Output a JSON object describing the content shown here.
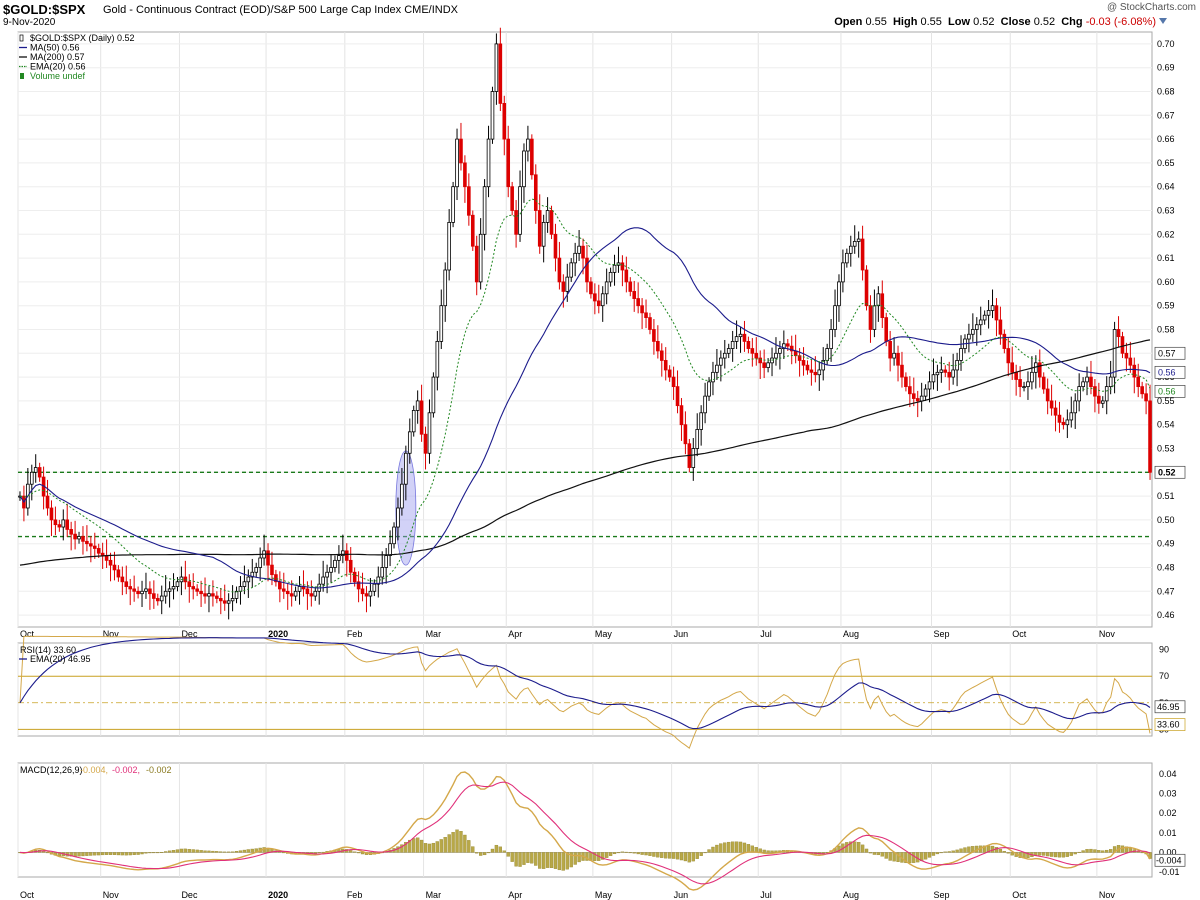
{
  "header": {
    "symbol": "$GOLD:$SPX",
    "description": "Gold - Continuous Contract (EOD)/S&P 500 Large Cap Index  CME/INDX",
    "date": "9-Nov-2020",
    "copyright": "@ StockCharts.com",
    "open_label": "Open",
    "open": "0.55",
    "high_label": "High",
    "high": "0.55",
    "low_label": "Low",
    "low": "0.52",
    "close_label": "Close",
    "close": "0.52",
    "chg_label": "Chg",
    "chg": "-0.03 (-6.08%)"
  },
  "colors": {
    "up": "#000000",
    "down": "#dd0000",
    "ma50": "#1c1c8c",
    "ma200": "#111111",
    "ema20": "#228822",
    "support": "#1a7a1a",
    "rsi": "#d4a84a",
    "band": "#c8a020",
    "macd_signal": "#e0307a",
    "highlight": "#9c9cee"
  },
  "chart_data": [
    {
      "type": "candlestick",
      "title": "$GOLD:$SPX (Daily) 0.52",
      "legend": [
        {
          "label": "$GOLD:$SPX (Daily) 0.52",
          "style": "candles"
        },
        {
          "label": "MA(50) 0.56",
          "style": "line"
        },
        {
          "label": "MA(200) 0.57",
          "style": "line"
        },
        {
          "label": "EMA(20) 0.56",
          "style": "dotted"
        },
        {
          "label": "Volume undef",
          "style": "bars"
        }
      ],
      "ylim": [
        0.455,
        0.705
      ],
      "yticks": [
        "0.70",
        "0.69",
        "0.68",
        "0.67",
        "0.66",
        "0.65",
        "0.64",
        "0.63",
        "0.62",
        "0.61",
        "0.60",
        "0.59",
        "0.58",
        "0.57",
        "0.56",
        "0.55",
        "0.54",
        "0.53",
        "0.52",
        "0.51",
        "0.50",
        "0.49",
        "0.48",
        "0.47",
        "0.46"
      ],
      "ytick_values": [
        0.7,
        0.69,
        0.68,
        0.67,
        0.66,
        0.65,
        0.64,
        0.63,
        0.62,
        0.61,
        0.6,
        0.59,
        0.58,
        0.57,
        0.56,
        0.55,
        0.54,
        0.53,
        0.52,
        0.51,
        0.5,
        0.49,
        0.48,
        0.47,
        0.46
      ],
      "months": [
        "Oct",
        "Nov",
        "Dec",
        "2020",
        "Feb",
        "Mar",
        "Apr",
        "May",
        "Jun",
        "Jul",
        "Aug",
        "Sep",
        "Oct",
        "Nov"
      ],
      "month_day_index": [
        0,
        21,
        41,
        63,
        83,
        103,
        124,
        146,
        166,
        188,
        209,
        232,
        252,
        274
      ],
      "close": [
        0.51,
        0.505,
        0.515,
        0.52,
        0.522,
        0.518,
        0.51,
        0.505,
        0.5,
        0.498,
        0.497,
        0.5,
        0.496,
        0.494,
        0.492,
        0.493,
        0.491,
        0.49,
        0.489,
        0.488,
        0.486,
        0.485,
        0.483,
        0.481,
        0.479,
        0.476,
        0.474,
        0.472,
        0.471,
        0.47,
        0.469,
        0.47,
        0.471,
        0.469,
        0.467,
        0.466,
        0.468,
        0.47,
        0.471,
        0.472,
        0.474,
        0.476,
        0.474,
        0.472,
        0.471,
        0.47,
        0.469,
        0.468,
        0.469,
        0.468,
        0.467,
        0.466,
        0.465,
        0.466,
        0.467,
        0.47,
        0.472,
        0.474,
        0.476,
        0.478,
        0.48,
        0.484,
        0.487,
        0.481,
        0.477,
        0.474,
        0.471,
        0.47,
        0.469,
        0.468,
        0.47,
        0.472,
        0.471,
        0.469,
        0.468,
        0.47,
        0.473,
        0.476,
        0.478,
        0.48,
        0.483,
        0.485,
        0.487,
        0.483,
        0.478,
        0.474,
        0.471,
        0.469,
        0.468,
        0.47,
        0.473,
        0.476,
        0.48,
        0.485,
        0.49,
        0.497,
        0.505,
        0.515,
        0.528,
        0.537,
        0.546,
        0.55,
        0.536,
        0.528,
        0.545,
        0.56,
        0.575,
        0.59,
        0.605,
        0.625,
        0.64,
        0.66,
        0.65,
        0.64,
        0.628,
        0.615,
        0.6,
        0.62,
        0.64,
        0.66,
        0.68,
        0.7,
        0.675,
        0.66,
        0.64,
        0.63,
        0.62,
        0.64,
        0.655,
        0.66,
        0.645,
        0.63,
        0.615,
        0.625,
        0.63,
        0.62,
        0.61,
        0.6,
        0.596,
        0.602,
        0.608,
        0.612,
        0.615,
        0.61,
        0.6,
        0.595,
        0.592,
        0.59,
        0.595,
        0.6,
        0.604,
        0.607,
        0.608,
        0.605,
        0.6,
        0.596,
        0.593,
        0.59,
        0.587,
        0.585,
        0.58,
        0.575,
        0.571,
        0.567,
        0.563,
        0.56,
        0.556,
        0.548,
        0.54,
        0.532,
        0.522,
        0.53,
        0.538,
        0.545,
        0.552,
        0.558,
        0.562,
        0.565,
        0.568,
        0.57,
        0.572,
        0.575,
        0.577,
        0.578,
        0.575,
        0.572,
        0.57,
        0.568,
        0.566,
        0.564,
        0.566,
        0.568,
        0.57,
        0.572,
        0.574,
        0.573,
        0.571,
        0.569,
        0.567,
        0.565,
        0.563,
        0.562,
        0.561,
        0.563,
        0.567,
        0.572,
        0.58,
        0.59,
        0.6,
        0.608,
        0.612,
        0.615,
        0.617,
        0.618,
        0.605,
        0.59,
        0.58,
        0.59,
        0.595,
        0.585,
        0.575,
        0.568,
        0.57,
        0.565,
        0.56,
        0.556,
        0.553,
        0.551,
        0.55,
        0.552,
        0.555,
        0.558,
        0.561,
        0.562,
        0.563,
        0.562,
        0.56,
        0.563,
        0.567,
        0.572,
        0.576,
        0.578,
        0.58,
        0.582,
        0.584,
        0.586,
        0.588,
        0.59,
        0.584,
        0.578,
        0.572,
        0.566,
        0.562,
        0.559,
        0.556,
        0.556,
        0.558,
        0.562,
        0.566,
        0.56,
        0.555,
        0.55,
        0.547,
        0.544,
        0.541,
        0.54,
        0.542,
        0.545,
        0.55,
        0.556,
        0.558,
        0.56,
        0.556,
        0.552,
        0.549,
        0.55,
        0.556,
        0.56,
        0.58,
        0.577,
        0.57,
        0.568,
        0.565,
        0.56,
        0.556,
        0.553,
        0.55,
        0.52
      ]
    },
    {
      "type": "line",
      "title": "RSI(14) 33.60",
      "legend": [
        {
          "label": "RSI(14) 33.60",
          "style": "line"
        },
        {
          "label": "EMA(20) 46.95",
          "style": "line"
        }
      ],
      "ylim": [
        25,
        95
      ],
      "yticks": [
        "90",
        "70",
        "50",
        "30"
      ],
      "ytick_values": [
        90,
        70,
        50,
        30
      ],
      "band_levels": [
        70,
        30
      ],
      "last_labels": [
        "46.95",
        "33.60"
      ]
    },
    {
      "type": "line",
      "title": "MACD(12,26,9) -0.004, -0.002, -0.002",
      "legend": [
        {
          "label": "MACD(12,26,9)",
          "style": "text"
        },
        {
          "label": "-0.004,",
          "style": "line"
        },
        {
          "label": "-0.002,",
          "style": "line"
        },
        {
          "label": "-0.002",
          "style": "bars"
        }
      ],
      "ylim": [
        -0.0125,
        0.0455
      ],
      "yticks": [
        "0.04",
        "0.03",
        "0.02",
        "0.01",
        "0.00",
        "-0.01"
      ],
      "ytick_values": [
        0.04,
        0.03,
        0.02,
        0.01,
        0.0,
        -0.01
      ],
      "last_labels": [
        "-0.004",
        "-0.002"
      ]
    }
  ]
}
